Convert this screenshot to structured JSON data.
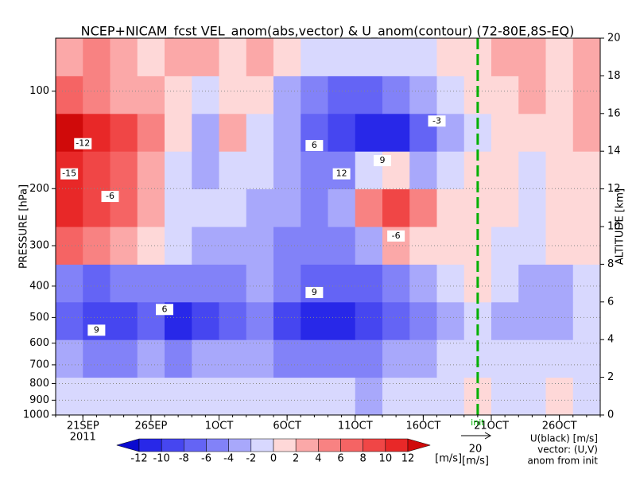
{
  "chart_data": {
    "type": "heatmap",
    "title": "NCEP+NICAM_fcst VEL_anom(abs,vector) & U_anom(contour)   (72-80E,8S-EQ)",
    "ylabel": "PRESSURE [hPa]",
    "y2label": "ALTITUDE [km]",
    "year_label": "2011",
    "xlim": [
      "2011-09-19",
      "2011-10-29"
    ],
    "xticks": [
      {
        "value": "2011-09-21",
        "label": "21SEP"
      },
      {
        "value": "2011-09-26",
        "label": "26SEP"
      },
      {
        "value": "2011-10-01",
        "label": "1OCT"
      },
      {
        "value": "2011-10-06",
        "label": "6OCT"
      },
      {
        "value": "2011-10-11",
        "label": "11OCT"
      },
      {
        "value": "2011-10-16",
        "label": "16OCT"
      },
      {
        "value": "2011-10-21",
        "label": "21OCT"
      },
      {
        "value": "2011-10-26",
        "label": "26OCT"
      }
    ],
    "yscale": "log",
    "ylim": [
      1000,
      68.6
    ],
    "yticks": [
      100,
      200,
      300,
      400,
      500,
      600,
      700,
      800,
      900,
      1000
    ],
    "y2lim": [
      0,
      20
    ],
    "y2ticks": [
      0,
      2,
      4,
      6,
      8,
      10,
      12,
      14,
      16,
      18,
      20
    ],
    "grid": true,
    "x": [
      "2011-09-20",
      "2011-09-22",
      "2011-09-24",
      "2011-09-26",
      "2011-09-28",
      "2011-09-30",
      "2011-10-02",
      "2011-10-04",
      "2011-10-06",
      "2011-10-08",
      "2011-10-10",
      "2011-10-12",
      "2011-10-14",
      "2011-10-16",
      "2011-10-18",
      "2011-10-20",
      "2011-10-22",
      "2011-10-24",
      "2011-10-26",
      "2011-10-28"
    ],
    "y2": [
      1,
      3,
      5,
      7,
      9,
      11,
      13,
      15,
      17,
      19
    ],
    "values": [
      [
        -1,
        -2,
        -2,
        -1,
        -2,
        -2,
        -1,
        -2,
        -2,
        -2,
        -2,
        -3,
        -2,
        -1,
        -1,
        0,
        -1,
        -1,
        0,
        -1
      ],
      [
        -4,
        -5,
        -5,
        -4,
        -5,
        -4,
        -3,
        -4,
        -5,
        -6,
        -5,
        -5,
        -4,
        -3,
        -2,
        -1,
        -2,
        -2,
        -2,
        -1
      ],
      [
        -8,
        -10,
        -9,
        -8,
        -11,
        -10,
        -7,
        -6,
        -9,
        -11,
        -12,
        -10,
        -7,
        -5,
        -3,
        -1,
        -3,
        -4,
        -4,
        -2
      ],
      [
        -6,
        -7,
        -6,
        -5,
        -6,
        -6,
        -5,
        -4,
        -6,
        -8,
        -8,
        -7,
        -5,
        -3,
        -2,
        0,
        -2,
        -3,
        -3,
        -1
      ],
      [
        6,
        5,
        3,
        0,
        -2,
        -3,
        -3,
        -4,
        -5,
        -6,
        -5,
        -3,
        2,
        1,
        0,
        0,
        -1,
        -1,
        0,
        1
      ],
      [
        11,
        9,
        6,
        2,
        -1,
        -2,
        -2,
        -3,
        -4,
        -5,
        -3,
        5,
        8,
        4,
        1,
        0,
        0,
        -1,
        0,
        1
      ],
      [
        10,
        8,
        7,
        3,
        -1,
        -3,
        -1,
        -2,
        -4,
        -6,
        -5,
        -2,
        0,
        -3,
        -2,
        0,
        0,
        -1,
        0,
        1
      ],
      [
        12,
        10,
        8,
        4,
        0,
        -3,
        2,
        -1,
        -4,
        -7,
        -9,
        -11,
        -12,
        -8,
        -3,
        -1,
        0,
        0,
        1,
        2
      ],
      [
        6,
        5,
        3,
        2,
        1,
        -2,
        1,
        0,
        -3,
        -6,
        -8,
        -7,
        -5,
        -3,
        -2,
        0,
        1,
        2,
        1,
        2
      ],
      [
        2,
        4,
        3,
        1,
        2,
        3,
        1,
        2,
        0,
        -1,
        -2,
        -1,
        -2,
        -1,
        0,
        1,
        2,
        3,
        1,
        2
      ]
    ],
    "colorbar": {
      "levels": [
        -12,
        -10,
        -8,
        -6,
        -4,
        -2,
        0,
        2,
        4,
        6,
        8,
        10,
        12
      ],
      "colors": [
        "#0a0ad0",
        "#2828e8",
        "#4646f0",
        "#6464f5",
        "#8282f8",
        "#a8a8fb",
        "#d8d8fe",
        "#fed8d8",
        "#fba8a8",
        "#f88282",
        "#f56464",
        "#f04646",
        "#e82828",
        "#d00a0a"
      ],
      "unit": "[m/s]"
    },
    "init": {
      "x": "2011-10-20",
      "label": "init",
      "color": "#00b000"
    },
    "contour_labels": [
      {
        "x": "2011-09-21",
        "y2": 14.4,
        "value": -12
      },
      {
        "x": "2011-09-20",
        "y2": 12.8,
        "value": -15
      },
      {
        "x": "2011-09-23",
        "y2": 11.6,
        "value": -6
      },
      {
        "x": "2011-10-14",
        "y2": 9.5,
        "value": -6
      },
      {
        "x": "2011-10-10",
        "y2": 12.8,
        "value": 12
      },
      {
        "x": "2011-10-13",
        "y2": 13.5,
        "value": 9
      },
      {
        "x": "2011-10-08",
        "y2": 14.3,
        "value": 6
      },
      {
        "x": "2011-10-08",
        "y2": 6.5,
        "value": 9
      },
      {
        "x": "2011-10-17",
        "y2": 15.6,
        "value": -3
      },
      {
        "x": "2011-09-27",
        "y2": 5.6,
        "value": 6
      },
      {
        "x": "2011-09-22",
        "y2": 4.5,
        "value": 9
      }
    ],
    "reference_vector": {
      "value": 20,
      "unit": "[m/s]"
    },
    "legend": [
      "U(black) [m/s]",
      "vector: (U,V)",
      "anom from init"
    ]
  }
}
